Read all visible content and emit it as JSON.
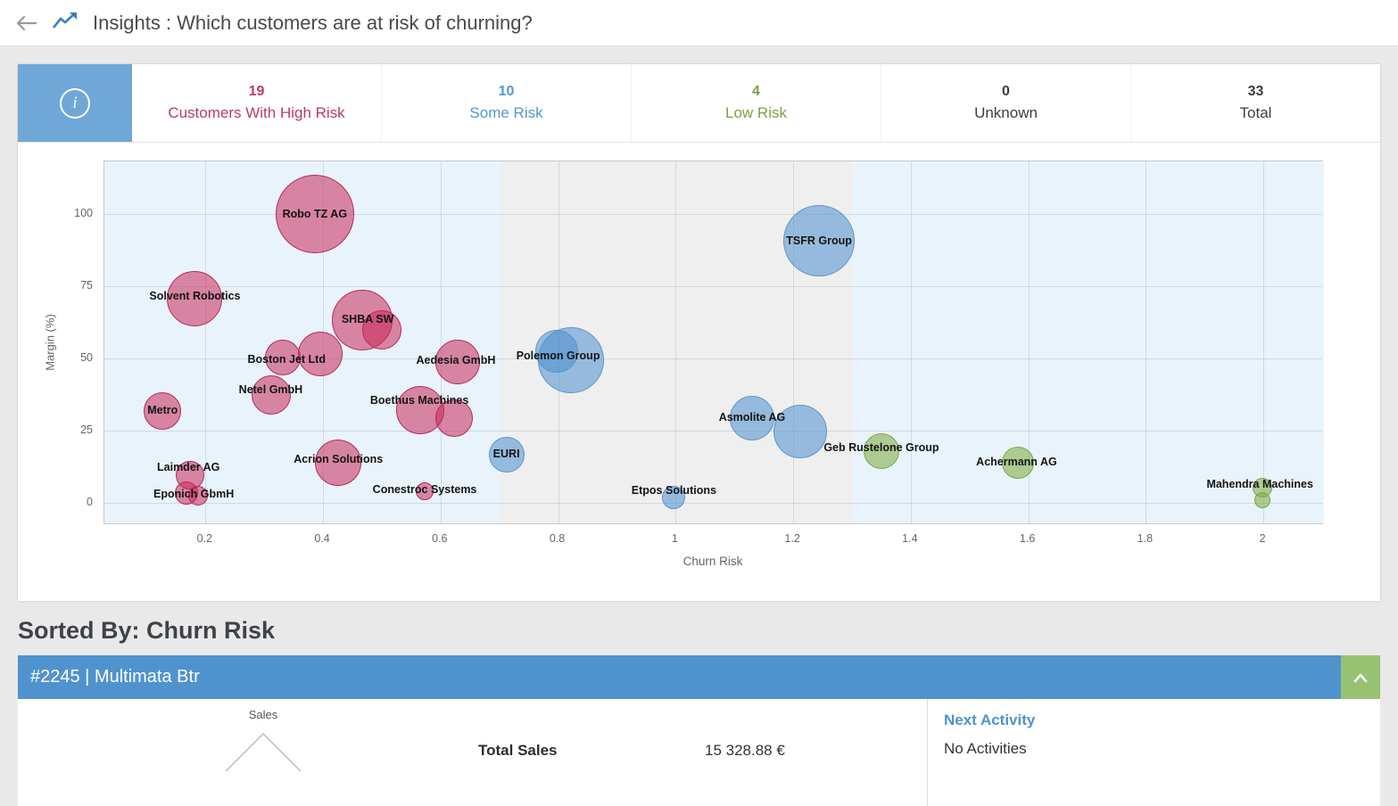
{
  "header": {
    "title": "Insights : Which customers are at risk of churning?"
  },
  "stats": [
    {
      "value": "19",
      "label": "Customers With High Risk",
      "color": "#b93d60"
    },
    {
      "value": "10",
      "label": "Some Risk",
      "color": "#5596cf"
    },
    {
      "value": "4",
      "label": "Low Risk",
      "color": "#7ca23f"
    },
    {
      "value": "0",
      "label": "Unknown",
      "color": "#3a3e42"
    },
    {
      "value": "33",
      "label": "Total",
      "color": "#3a3e42"
    }
  ],
  "chart_data": {
    "type": "scatter",
    "xlabel": "Churn Risk",
    "ylabel": "Margin (%)",
    "xlim": [
      0.028,
      2.103
    ],
    "ylim": [
      -7.7,
      118.2
    ],
    "xticks": [
      {
        "v": 0.2,
        "label": "0.2"
      },
      {
        "v": 0.4,
        "label": "0.4"
      },
      {
        "v": 0.6,
        "label": "0.6"
      },
      {
        "v": 0.8,
        "label": "0.8"
      },
      {
        "v": 1.0,
        "label": "1"
      },
      {
        "v": 1.2,
        "label": "1.2"
      },
      {
        "v": 1.4,
        "label": "1.4"
      },
      {
        "v": 1.6,
        "label": "1.6"
      },
      {
        "v": 1.8,
        "label": "1.8"
      },
      {
        "v": 2.0,
        "label": "2"
      }
    ],
    "yticks": [
      {
        "v": 0,
        "label": "0"
      },
      {
        "v": 25,
        "label": "25"
      },
      {
        "v": 50,
        "label": "50"
      },
      {
        "v": 75,
        "label": "75"
      },
      {
        "v": 100,
        "label": "100"
      }
    ],
    "bands": [
      {
        "from": null,
        "to": 0.7,
        "color": "#e9f3fb"
      },
      {
        "from": 0.7,
        "to": 1.3,
        "color": "#efefef"
      },
      {
        "from": 1.3,
        "to": null,
        "color": "#e9f3fb"
      }
    ],
    "risk_colors": {
      "high": {
        "fill": "rgba(200,40,90,0.55)",
        "border": "#b42a5c"
      },
      "some": {
        "fill": "rgba(77,142,206,0.55)",
        "border": "#5e96c8"
      },
      "low": {
        "fill": "rgba(124,169,59,0.55)",
        "border": "#7fa44e"
      }
    },
    "bubbles": [
      {
        "name": "Robo TZ AG",
        "risk": "high",
        "x": 0.386,
        "y": 100.0,
        "r": 44,
        "label": {
          "x": 0.386,
          "y": 100.0
        }
      },
      {
        "name": "Solvent Robotics",
        "risk": "high",
        "x": 0.182,
        "y": 70.7,
        "r": 31,
        "label": {
          "x": 0.182,
          "y": 71.6
        }
      },
      {
        "name": "SHBA SW",
        "risk": "high",
        "x": 0.467,
        "y": 63.3,
        "r": 34,
        "label": {
          "x": 0.476,
          "y": 63.6
        }
      },
      {
        "name": null,
        "risk": "high",
        "x": 0.5,
        "y": 60.0,
        "r": 22,
        "label": null
      },
      {
        "name": "Boston Jet Ltd",
        "risk": "high",
        "x": 0.395,
        "y": 51.5,
        "r": 25,
        "label": {
          "x": 0.338,
          "y": 49.7
        }
      },
      {
        "name": null,
        "risk": "high",
        "x": 0.332,
        "y": 50.3,
        "r": 20,
        "label": null
      },
      {
        "name": "Netel GmbH",
        "risk": "high",
        "x": 0.312,
        "y": 37.3,
        "r": 22,
        "label": {
          "x": 0.311,
          "y": 39.2
        }
      },
      {
        "name": "Aedesia GmbH",
        "risk": "high",
        "x": 0.629,
        "y": 48.8,
        "r": 25,
        "label": {
          "x": 0.626,
          "y": 49.4
        }
      },
      {
        "name": "Metro",
        "risk": "high",
        "x": 0.127,
        "y": 31.8,
        "r": 21,
        "label": {
          "x": 0.127,
          "y": 32.1
        }
      },
      {
        "name": "Boethus Machines",
        "risk": "high",
        "x": 0.565,
        "y": 32.1,
        "r": 27,
        "label": {
          "x": 0.564,
          "y": 35.5
        }
      },
      {
        "name": null,
        "risk": "high",
        "x": 0.623,
        "y": 29.3,
        "r": 21,
        "label": null
      },
      {
        "name": "Acrion Solutions",
        "risk": "high",
        "x": 0.426,
        "y": 13.9,
        "r": 26,
        "label": {
          "x": 0.426,
          "y": 15.1
        }
      },
      {
        "name": "Conestroc Systems",
        "risk": "high",
        "x": 0.573,
        "y": 4.0,
        "r": 10,
        "label": {
          "x": 0.573,
          "y": 4.6
        }
      },
      {
        "name": "Laimder AG",
        "risk": "high",
        "x": 0.174,
        "y": 9.6,
        "r": 16,
        "label": {
          "x": 0.171,
          "y": 12.3
        }
      },
      {
        "name": "Eponich GbmH",
        "risk": "high",
        "x": 0.168,
        "y": 3.3,
        "r": 13,
        "label": {
          "x": 0.18,
          "y": 3.1
        }
      },
      {
        "name": null,
        "risk": "high",
        "x": 0.188,
        "y": 2.6,
        "r": 11,
        "label": null
      },
      {
        "name": "TSFR Group",
        "risk": "some",
        "x": 1.244,
        "y": 90.7,
        "r": 40,
        "label": {
          "x": 1.244,
          "y": 90.7
        }
      },
      {
        "name": "Polemon Group",
        "risk": "some",
        "x": 0.822,
        "y": 49.4,
        "r": 37,
        "label": {
          "x": 0.8,
          "y": 50.9
        }
      },
      {
        "name": null,
        "risk": "some",
        "x": 0.797,
        "y": 52.5,
        "r": 24,
        "label": null
      },
      {
        "name": "Asmolite AG",
        "risk": "some",
        "x": 1.13,
        "y": 29.3,
        "r": 25,
        "label": {
          "x": 1.13,
          "y": 29.6
        }
      },
      {
        "name": null,
        "risk": "some",
        "x": 1.212,
        "y": 24.7,
        "r": 30,
        "label": null
      },
      {
        "name": "EURI",
        "risk": "some",
        "x": 0.712,
        "y": 16.7,
        "r": 20,
        "label": {
          "x": 0.712,
          "y": 17.0
        }
      },
      {
        "name": "Etpos Solutions",
        "risk": "some",
        "x": 0.997,
        "y": 1.9,
        "r": 13,
        "label": {
          "x": 0.997,
          "y": 4.3
        }
      },
      {
        "name": "Geb Rustelone Group",
        "risk": "low",
        "x": 1.35,
        "y": 17.9,
        "r": 20,
        "label": {
          "x": 1.35,
          "y": 19.1
        }
      },
      {
        "name": "Achermann AG",
        "risk": "low",
        "x": 1.582,
        "y": 13.9,
        "r": 18,
        "label": {
          "x": 1.58,
          "y": 14.2
        }
      },
      {
        "name": "Mahendra Machines",
        "risk": "low",
        "x": 1.998,
        "y": 5.2,
        "r": 11,
        "label": {
          "x": 1.994,
          "y": 6.5
        }
      },
      {
        "name": null,
        "risk": "low",
        "x": 1.998,
        "y": 0.9,
        "r": 9,
        "label": null
      }
    ]
  },
  "sorted_by": "Sorted By: Churn Risk",
  "account": {
    "bar_title": "#2245 | Multimata Btr",
    "sales_label": "Sales",
    "total_sales_label": "Total Sales",
    "total_sales_value": "15 328.88 €",
    "next_activity_label": "Next Activity",
    "next_activity_value": "No Activities"
  }
}
